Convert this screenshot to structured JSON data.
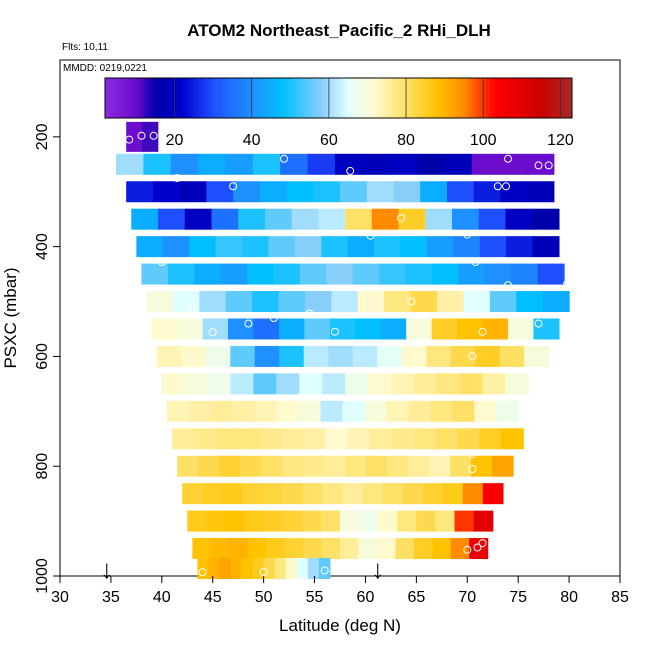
{
  "chart_data": {
    "type": "heatmap",
    "title": "ATOM2 Northeast_Pacific_2 RHi_DLH",
    "notes": [
      "Flts: 10,11",
      "MMDD: 0219,0221"
    ],
    "xlabel": "Latitude (deg N)",
    "ylabel": "PSXC (mbar)",
    "xlim": [
      30,
      85
    ],
    "ylim": [
      1000,
      60
    ],
    "y_reversed": true,
    "x_ticks": [
      30,
      35,
      40,
      45,
      50,
      55,
      60,
      65,
      70,
      75,
      80,
      85
    ],
    "y_ticks": [
      200,
      400,
      600,
      800,
      1000
    ],
    "colorbar": {
      "range": [
        2,
        123
      ],
      "ticks": [
        20,
        40,
        60,
        80,
        100,
        120
      ],
      "stops": [
        {
          "v": 2,
          "c": "#8a2be2"
        },
        {
          "v": 10,
          "c": "#6a0dcc"
        },
        {
          "v": 15,
          "c": "#0000aa"
        },
        {
          "v": 22,
          "c": "#0000cd"
        },
        {
          "v": 30,
          "c": "#1e50ff"
        },
        {
          "v": 40,
          "c": "#1e90ff"
        },
        {
          "v": 48,
          "c": "#00bfff"
        },
        {
          "v": 58,
          "c": "#87cefa"
        },
        {
          "v": 65,
          "c": "#e0ffff"
        },
        {
          "v": 72,
          "c": "#fffacd"
        },
        {
          "v": 80,
          "c": "#ffe066"
        },
        {
          "v": 88,
          "c": "#ffc200"
        },
        {
          "v": 95,
          "c": "#ff8c00"
        },
        {
          "v": 103,
          "c": "#ff0000"
        },
        {
          "v": 115,
          "c": "#cd0000"
        },
        {
          "v": 123,
          "c": "#a52a2a"
        }
      ]
    },
    "markers": [
      {
        "lat": 34.6,
        "label": "↓"
      },
      {
        "lat": 61.2,
        "label": "↓"
      }
    ],
    "rows": [
      {
        "p": 200,
        "lat0": 36.5,
        "lat1": 39.6,
        "v": [
          10,
          12
        ]
      },
      {
        "p": 250,
        "lat0": 35.5,
        "lat1": 78.5,
        "v": [
          60,
          50,
          40,
          45,
          42,
          50,
          35,
          28,
          20,
          18,
          20,
          15,
          18,
          10,
          10,
          10
        ]
      },
      {
        "p": 300,
        "lat0": 36.5,
        "lat1": 78.5,
        "v": [
          25,
          22,
          18,
          30,
          40,
          45,
          48,
          50,
          55,
          60,
          58,
          45,
          30,
          25,
          20,
          18
        ]
      },
      {
        "p": 350,
        "lat0": 37.0,
        "lat1": 79.0,
        "v": [
          45,
          30,
          20,
          35,
          50,
          55,
          60,
          62,
          80,
          95,
          85,
          60,
          40,
          30,
          20,
          15
        ]
      },
      {
        "p": 400,
        "lat0": 37.5,
        "lat1": 79.0,
        "v": [
          45,
          40,
          48,
          52,
          50,
          55,
          58,
          50,
          45,
          50,
          48,
          42,
          38,
          30,
          25,
          18
        ]
      },
      {
        "p": 450,
        "lat0": 38.0,
        "lat1": 79.5,
        "v": [
          55,
          50,
          45,
          42,
          48,
          50,
          55,
          58,
          55,
          52,
          50,
          48,
          42,
          40,
          38,
          30
        ]
      },
      {
        "p": 500,
        "lat0": 38.5,
        "lat1": 80.0,
        "v": [
          70,
          65,
          60,
          55,
          50,
          55,
          58,
          62,
          72,
          78,
          82,
          75,
          65,
          55,
          48,
          45
        ]
      },
      {
        "p": 550,
        "lat0": 39.0,
        "lat1": 79.0,
        "v": [
          72,
          70,
          60,
          40,
          35,
          45,
          55,
          50,
          48,
          45,
          70,
          85,
          88,
          90,
          70,
          50
        ]
      },
      {
        "p": 600,
        "lat0": 39.5,
        "lat1": 78.0,
        "v": [
          74,
          72,
          68,
          55,
          40,
          50,
          62,
          60,
          62,
          66,
          72,
          78,
          82,
          85,
          80,
          70
        ]
      },
      {
        "p": 650,
        "lat0": 40.0,
        "lat1": 76.0,
        "v": [
          72,
          70,
          68,
          62,
          55,
          60,
          65,
          62,
          68,
          72,
          74,
          76,
          78,
          80,
          75,
          70
        ]
      },
      {
        "p": 700,
        "lat0": 40.5,
        "lat1": 75.0,
        "v": [
          74,
          75,
          76,
          75,
          74,
          72,
          70,
          62,
          65,
          70,
          74,
          76,
          78,
          80,
          72,
          68
        ]
      },
      {
        "p": 750,
        "lat0": 41.0,
        "lat1": 75.5,
        "v": [
          76,
          77,
          78,
          78,
          77,
          76,
          75,
          72,
          74,
          76,
          77,
          78,
          80,
          82,
          85,
          88
        ]
      },
      {
        "p": 800,
        "lat0": 41.5,
        "lat1": 74.5,
        "v": [
          80,
          82,
          84,
          82,
          80,
          78,
          77,
          76,
          78,
          80,
          78,
          76,
          74,
          80,
          88,
          92
        ]
      },
      {
        "p": 850,
        "lat0": 42.0,
        "lat1": 73.5,
        "v": [
          84,
          85,
          86,
          84,
          83,
          82,
          80,
          78,
          76,
          78,
          80,
          82,
          84,
          86,
          95,
          105
        ]
      },
      {
        "p": 900,
        "lat0": 42.5,
        "lat1": 72.5,
        "v": [
          86,
          87,
          88,
          86,
          85,
          84,
          82,
          80,
          70,
          68,
          72,
          78,
          82,
          78,
          100,
          110
        ]
      },
      {
        "p": 950,
        "lat0": 43.0,
        "lat1": 72.0,
        "v": [
          88,
          89,
          90,
          88,
          86,
          84,
          82,
          80,
          76,
          70,
          72,
          80,
          85,
          88,
          95,
          108
        ]
      },
      {
        "p": 990,
        "lat0": 43.5,
        "lat1": 56.5,
        "v": [
          88,
          90,
          92,
          90,
          88,
          86,
          82,
          78,
          72,
          65,
          60,
          55
        ]
      }
    ],
    "points": [
      [
        36.8,
        205
      ],
      [
        38.0,
        198
      ],
      [
        39.2,
        198
      ],
      [
        41.5,
        275
      ],
      [
        47.0,
        290
      ],
      [
        52.0,
        240
      ],
      [
        58.5,
        262
      ],
      [
        68.0,
        218
      ],
      [
        74.0,
        240
      ],
      [
        77.0,
        252
      ],
      [
        78.0,
        252
      ],
      [
        73.0,
        290
      ],
      [
        73.8,
        290
      ],
      [
        63.5,
        348
      ],
      [
        60.5,
        380
      ],
      [
        70.0,
        378
      ],
      [
        40.0,
        428
      ],
      [
        70.8,
        428
      ],
      [
        43.0,
        512
      ],
      [
        74.0,
        470
      ],
      [
        79.8,
        468
      ],
      [
        64.5,
        500
      ],
      [
        45.0,
        556
      ],
      [
        48.5,
        540
      ],
      [
        51.0,
        530
      ],
      [
        54.5,
        522
      ],
      [
        57.0,
        555
      ],
      [
        66.0,
        528
      ],
      [
        71.5,
        555
      ],
      [
        77.0,
        540
      ],
      [
        70.5,
        600
      ],
      [
        70.5,
        778
      ],
      [
        70.5,
        805
      ],
      [
        71.5,
        940
      ],
      [
        71.0,
        948
      ],
      [
        70.0,
        952
      ],
      [
        44.0,
        993
      ],
      [
        50.0,
        993
      ],
      [
        56.0,
        990
      ]
    ]
  }
}
